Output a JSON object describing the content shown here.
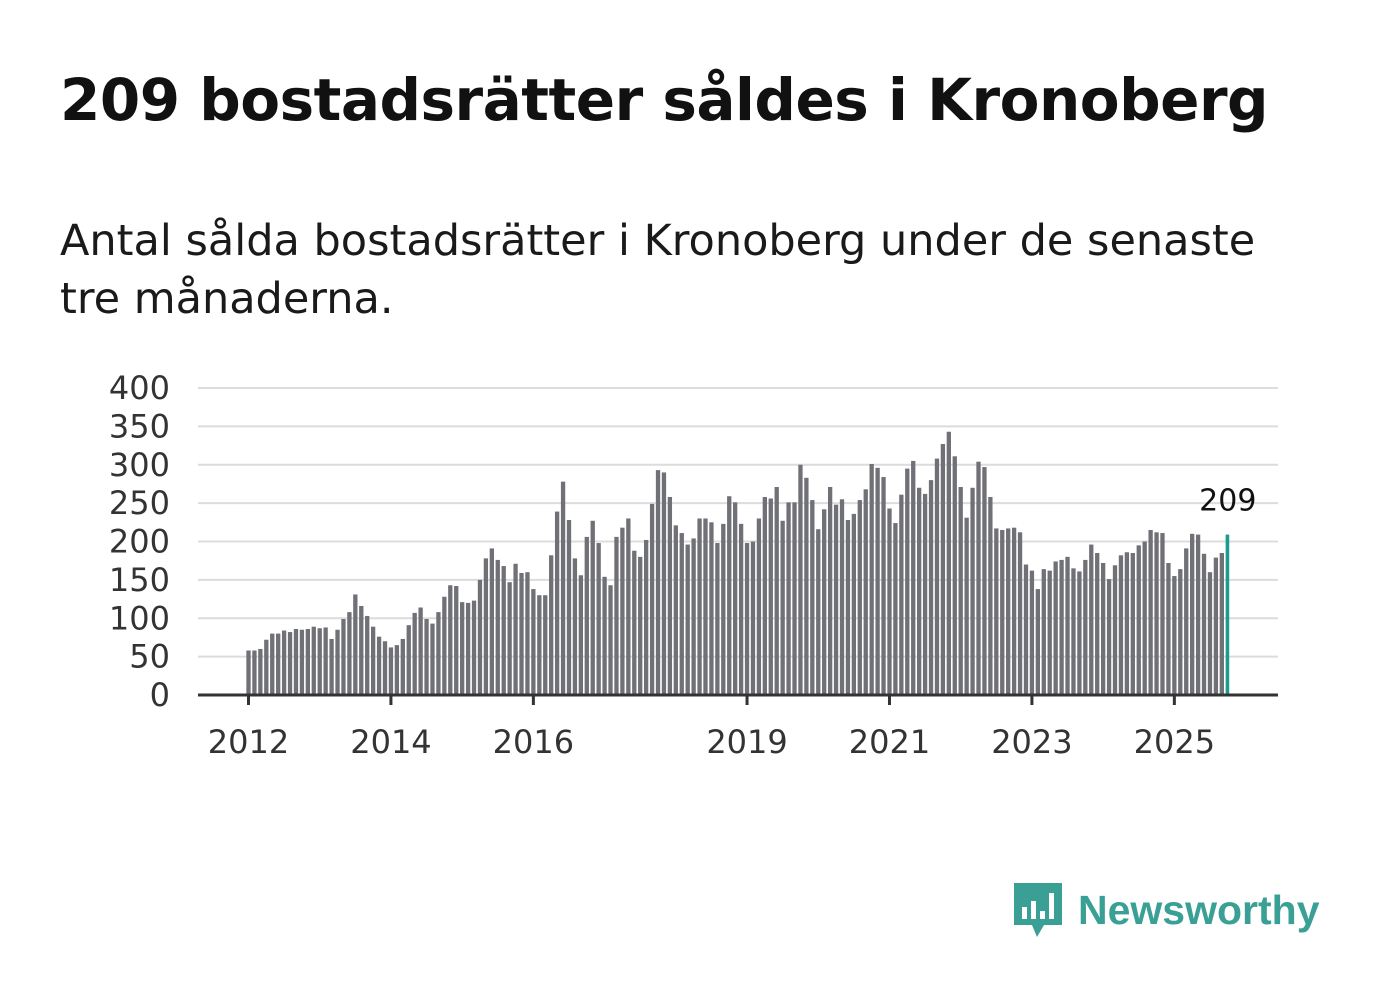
{
  "title": "209 bostadsrätter såldes i Kronoberg",
  "subtitle": "Antal sålda bostadsrätter i Kronoberg under de senaste tre månaderna.",
  "brand": {
    "name": "Newsworthy",
    "logo_icon": "bar-chart-speech-bubble-icon"
  },
  "colors": {
    "bar": "#707077",
    "highlight": "#1f9a8f",
    "brand": "#3aa095"
  },
  "chart_data": {
    "type": "bar",
    "start_period": "2012-01",
    "frequency": "monthly",
    "ylim": [
      0,
      400
    ],
    "yticks": [
      0,
      50,
      100,
      150,
      200,
      250,
      300,
      350,
      400
    ],
    "yticks_labels": [
      "0",
      "50",
      "100",
      "150",
      "200",
      "250",
      "300",
      "350",
      "400"
    ],
    "xticks": [
      {
        "label": "2012",
        "index": 0
      },
      {
        "label": "2014",
        "index": 24
      },
      {
        "label": "2016",
        "index": 48
      },
      {
        "label": "2019",
        "index": 84
      },
      {
        "label": "2021",
        "index": 108
      },
      {
        "label": "2023",
        "index": 132
      },
      {
        "label": "2025",
        "index": 156
      }
    ],
    "last_value_label": "209",
    "grid": true,
    "values": [
      58,
      58,
      60,
      72,
      80,
      80,
      84,
      82,
      86,
      85,
      86,
      89,
      87,
      88,
      73,
      85,
      99,
      108,
      131,
      116,
      103,
      89,
      76,
      70,
      62,
      65,
      73,
      91,
      107,
      114,
      99,
      93,
      108,
      128,
      143,
      142,
      121,
      120,
      123,
      150,
      178,
      191,
      176,
      168,
      147,
      171,
      159,
      160,
      138,
      130,
      130,
      182,
      239,
      278,
      228,
      178,
      156,
      206,
      227,
      198,
      154,
      143,
      206,
      218,
      230,
      188,
      180,
      202,
      249,
      293,
      290,
      258,
      221,
      211,
      196,
      204,
      230,
      230,
      225,
      198,
      223,
      259,
      251,
      223,
      198,
      200,
      230,
      258,
      256,
      271,
      227,
      251,
      251,
      300,
      283,
      254,
      216,
      242,
      271,
      248,
      255,
      228,
      236,
      254,
      268,
      301,
      296,
      284,
      243,
      224,
      261,
      295,
      305,
      270,
      262,
      280,
      308,
      327,
      343,
      311,
      271,
      231,
      270,
      304,
      297,
      258,
      217,
      215,
      217,
      218,
      212,
      170,
      162,
      138,
      164,
      162,
      174,
      176,
      180,
      165,
      161,
      176,
      196,
      185,
      172,
      151,
      169,
      182,
      186,
      185,
      195,
      200,
      215,
      212,
      211,
      172,
      155,
      164,
      191,
      210,
      209,
      184,
      160,
      179,
      185,
      209
    ]
  }
}
